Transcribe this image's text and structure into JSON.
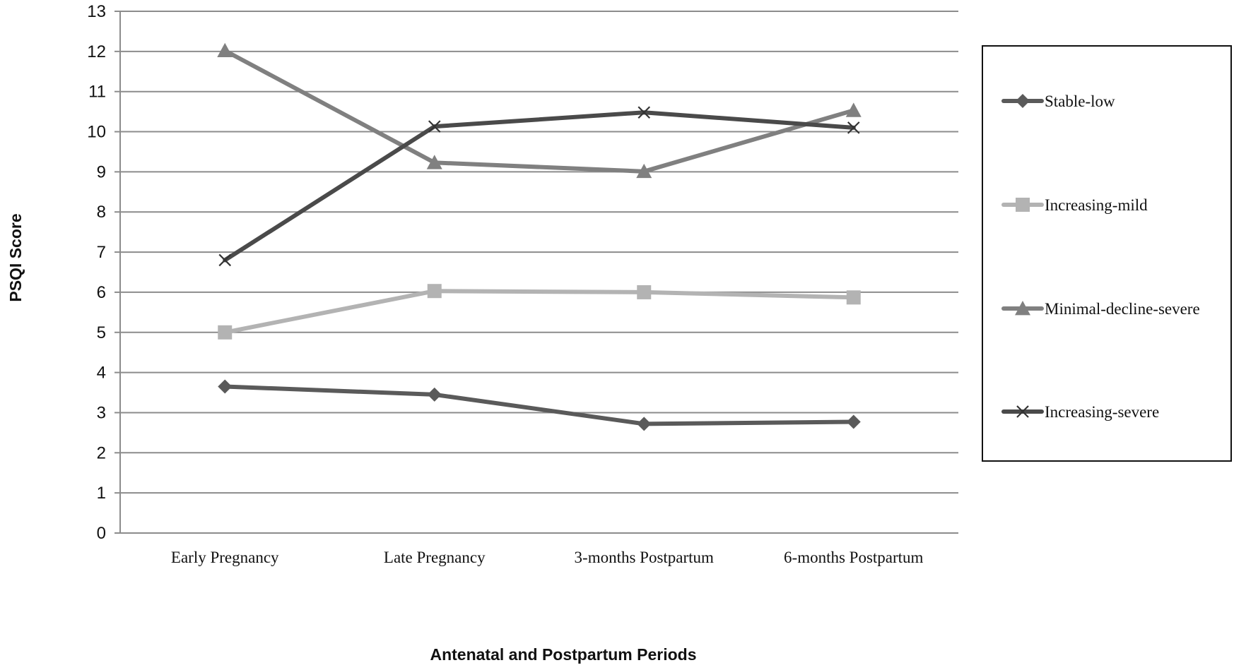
{
  "chart_data": {
    "type": "line",
    "title": "",
    "xlabel": "Antenatal and Postpartum Periods",
    "ylabel": "PSQI Score",
    "categories": [
      "Early Pregnancy",
      "Late Pregnancy",
      "3-months Postpartum",
      "6-months Postpartum"
    ],
    "ylim": [
      0,
      13
    ],
    "yticks": [
      0,
      1,
      2,
      3,
      4,
      5,
      6,
      7,
      8,
      9,
      10,
      11,
      12,
      13
    ],
    "grid": "horizontal",
    "legend_position": "right",
    "series": [
      {
        "name": "Stable-low",
        "values": [
          3.65,
          3.45,
          2.72,
          2.77
        ],
        "marker": "diamond",
        "color": "#5a5a5a"
      },
      {
        "name": "Increasing-mild",
        "values": [
          5.0,
          6.03,
          6.0,
          5.87
        ],
        "marker": "square",
        "color": "#b3b3b3"
      },
      {
        "name": "Minimal-decline-severe",
        "values": [
          12.02,
          9.23,
          9.01,
          10.53
        ],
        "marker": "triangle",
        "color": "#808080"
      },
      {
        "name": "Increasing-severe",
        "values": [
          6.8,
          10.13,
          10.48,
          10.1
        ],
        "marker": "x",
        "color": "#4a4a4a"
      }
    ]
  }
}
